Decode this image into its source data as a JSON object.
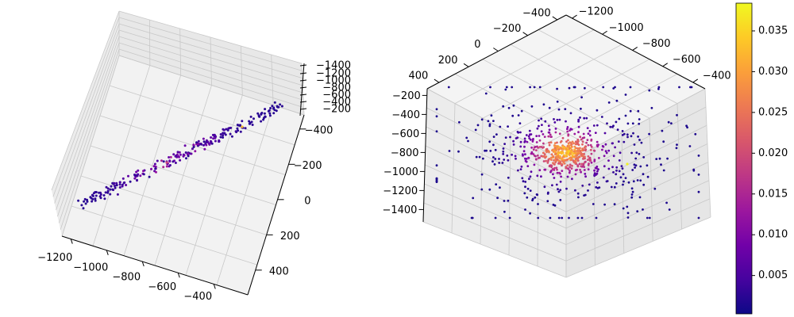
{
  "chart_data": [
    {
      "type": "scatter",
      "projection": "3d",
      "view": "oblique, z axis labels on right edge",
      "title": "",
      "xlabel": "",
      "ylabel": "",
      "zlabel": "",
      "grid": true,
      "x_ticks": [
        "−1200",
        "−1000",
        "−800",
        "−600",
        "−400"
      ],
      "y_ticks": [
        "−400",
        "−200",
        "0",
        "200",
        "400"
      ],
      "z_ticks": [
        "−1400",
        "−1200",
        "−1000",
        "−800",
        "−600",
        "−400",
        "−200"
      ],
      "xlim": [
        -1300,
        -300
      ],
      "ylim": [
        -500,
        500
      ],
      "zlim": [
        -1450,
        -150
      ],
      "point_count": 240,
      "distribution": "points lie along a thin diagonal line from x≈−1250 to x≈−400",
      "colormap": "plasma"
    },
    {
      "type": "scatter",
      "projection": "3d",
      "view": "looking down the line axis",
      "title": "",
      "xlabel": "",
      "ylabel": "",
      "zlabel": "",
      "grid": true,
      "x_ticks": [
        "−1200",
        "−1000",
        "−800",
        "−600",
        "−400"
      ],
      "y_ticks": [
        "−400",
        "−200",
        "0",
        "200",
        "400"
      ],
      "z_ticks": [
        "−200",
        "−400",
        "−600",
        "−800",
        "−1000",
        "−1200",
        "−1400"
      ],
      "xlim": [
        -1300,
        -300
      ],
      "ylim": [
        -500,
        500
      ],
      "zlim": [
        -1450,
        -150
      ],
      "point_count": 800,
      "distribution": "dense cluster centred near the middle with scattered points around it",
      "colormap": "plasma"
    }
  ],
  "colorbar": {
    "colormap": "plasma",
    "ticks": [
      "0.005",
      "0.010",
      "0.015",
      "0.020",
      "0.025",
      "0.030",
      "0.035"
    ],
    "tick_values": [
      0.005,
      0.01,
      0.015,
      0.02,
      0.025,
      0.03,
      0.035
    ],
    "range": [
      0.0003,
      0.0384
    ]
  },
  "colors": {
    "pane": "#f2f2f2",
    "pane_dark": "#e8e8e8",
    "grid": "#c8c8c8",
    "axis": "#000000",
    "plasma": [
      "#0d0887",
      "#46039f",
      "#7201a8",
      "#9c179e",
      "#bd3786",
      "#d8576b",
      "#ed7953",
      "#fb9f3a",
      "#fdca26",
      "#f0f921"
    ]
  }
}
